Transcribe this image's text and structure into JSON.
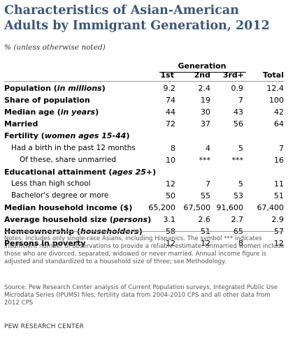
{
  "title": "Characteristics of Asian-American Adults by Immigrant Generation, 2012",
  "subtitle": "% (unless otherwise noted)",
  "generation_header": "Generation",
  "columns": [
    "1st",
    "2nd",
    "3rd+",
    "Total"
  ],
  "rows": [
    {
      "pre": "Population (",
      "it": "in millions",
      "post": ")",
      "bold": true,
      "indent": 0,
      "values": [
        "9.2",
        "2.4",
        "0.9",
        "12.4"
      ]
    },
    {
      "pre": "Share of population",
      "it": "",
      "post": "",
      "bold": true,
      "indent": 0,
      "values": [
        "74",
        "19",
        "7",
        "100"
      ]
    },
    {
      "pre": "Median age (",
      "it": "in years",
      "post": ")",
      "bold": true,
      "indent": 0,
      "values": [
        "44",
        "30",
        "43",
        "42"
      ]
    },
    {
      "pre": "Married",
      "it": "",
      "post": "",
      "bold": true,
      "indent": 0,
      "values": [
        "72",
        "37",
        "56",
        "64"
      ]
    },
    {
      "pre": "Fertility (",
      "it": "women ages 15-44",
      "post": ")",
      "bold": true,
      "indent": 0,
      "values": [
        "",
        "",
        "",
        ""
      ]
    },
    {
      "pre": "Had a birth in the past 12 months",
      "it": "",
      "post": "",
      "bold": false,
      "indent": 1,
      "values": [
        "8",
        "4",
        "5",
        "7"
      ]
    },
    {
      "pre": "Of these, share unmarried",
      "it": "",
      "post": "",
      "bold": false,
      "indent": 2,
      "values": [
        "10",
        "***",
        "***",
        "16"
      ]
    },
    {
      "pre": "Educational attainment (",
      "it": "ages 25+",
      "post": ")",
      "bold": true,
      "indent": 0,
      "values": [
        "",
        "",
        "",
        ""
      ]
    },
    {
      "pre": "Less than high school",
      "it": "",
      "post": "",
      "bold": false,
      "indent": 1,
      "values": [
        "12",
        "7",
        "5",
        "11"
      ]
    },
    {
      "pre": "Bachelor's degree or more",
      "it": "",
      "post": "",
      "bold": false,
      "indent": 1,
      "values": [
        "50",
        "55",
        "53",
        "51"
      ]
    },
    {
      "pre": "Median household income ($)",
      "it": "",
      "post": "",
      "bold": true,
      "indent": 0,
      "values": [
        "65,200",
        "67,500",
        "91,600",
        "67,400"
      ]
    },
    {
      "pre": "Average household size (",
      "it": "persons",
      "post": ")",
      "bold": true,
      "indent": 0,
      "values": [
        "3.1",
        "2.6",
        "2.7",
        "2.9"
      ]
    },
    {
      "pre": "Homeownership (",
      "it": "householders",
      "post": ")",
      "bold": true,
      "indent": 0,
      "values": [
        "58",
        "51",
        "65",
        "57"
      ]
    },
    {
      "pre": "Persons in poverty",
      "it": "",
      "post": "",
      "bold": true,
      "indent": 0,
      "values": [
        "12",
        "12",
        "8",
        "12"
      ]
    }
  ],
  "notes": "Notes: Includes only single-race Asians, including Hispanics. The symbol *** indicates insufficient number of observations to provide a reliable estimate. Unmarried women include those who are divorced, separated, widowed or never married. Annual income figure is adjusted and standardized to a household size of three; see Methodology.",
  "source": "Source: Pew Research Center analysis of Current Population surveys, Integrated Public Use Microdata Series (IPUMS) files; fertility data from 2004-2010 CPS and all other data from 2012 CPS",
  "footer": "PEW RESEARCH CENTER"
}
